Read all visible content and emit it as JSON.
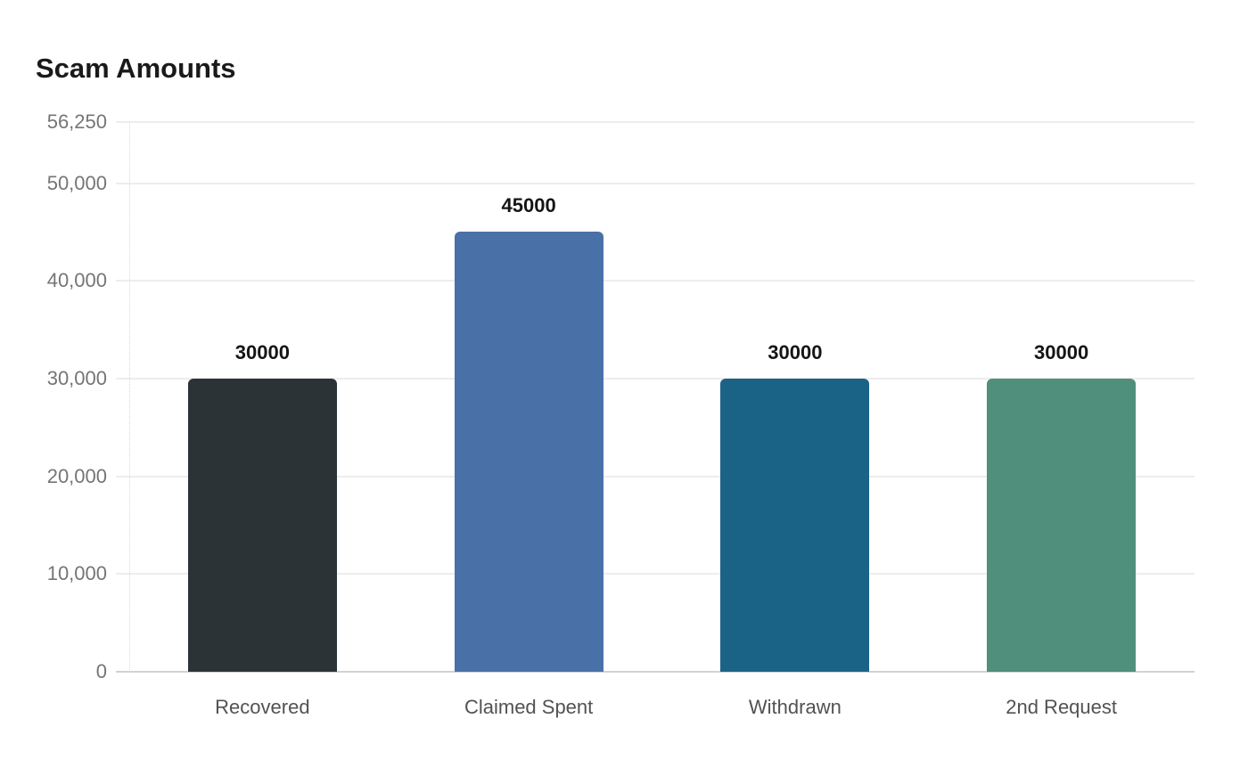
{
  "page": {
    "background": "#ffffff"
  },
  "chart_data": {
    "type": "bar",
    "title": "Scam Amounts",
    "categories": [
      "Recovered",
      "Claimed Spent",
      "Withdrawn",
      "2nd Request"
    ],
    "values": [
      30000,
      45000,
      30000,
      30000
    ],
    "value_labels": [
      "30000",
      "45000",
      "30000",
      "30000"
    ],
    "bar_colors": [
      "#2b3336",
      "#4a70a8",
      "#1a6386",
      "#4f8f7c"
    ],
    "ylim": [
      0,
      56250
    ],
    "yticks": [
      0,
      10000,
      20000,
      30000,
      40000,
      50000,
      56250
    ],
    "ytick_labels": [
      "0",
      "10,000",
      "20,000",
      "30,000",
      "40,000",
      "50,000",
      "56,250"
    ],
    "xlabel": "",
    "ylabel": "",
    "grid": "horizontal",
    "legend": "none"
  },
  "style": {
    "title_color": "#1a1a1a",
    "gridline_color": "#ededed",
    "axis_line_color": "#d2d2d2",
    "ytick_color": "#757575",
    "xtick_color": "#525252",
    "value_label_color": "#151515"
  }
}
